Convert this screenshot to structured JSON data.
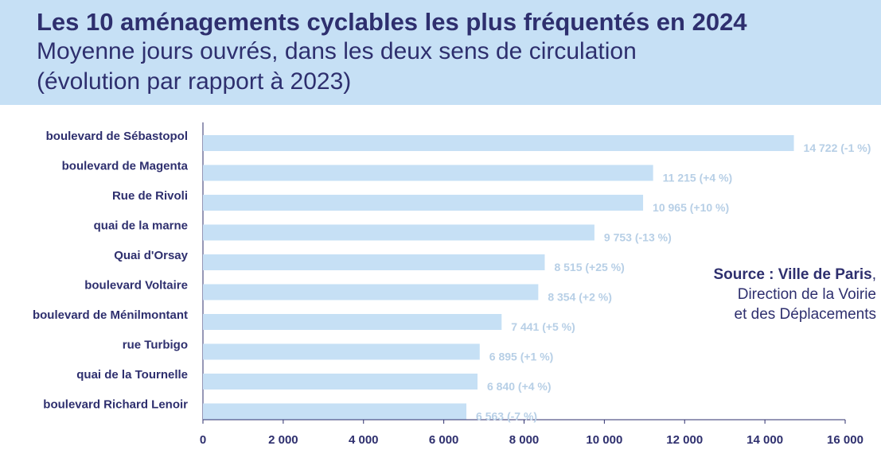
{
  "header": {
    "title": "Les 10 aménagements cyclables les plus fréquentés en 2024",
    "subtitle_line1": "Moyenne jours ouvrés, dans les deux sens de circulation",
    "subtitle_line2": "(évolution par rapport à 2023)"
  },
  "source": {
    "bold": "Source : Ville de Paris",
    "comma": ",",
    "line2": "Direction de la Voirie",
    "line3": "et des Déplacements"
  },
  "colors": {
    "bar": "#c6e0f5",
    "text": "#2e2f6e",
    "value_label": "#b7cfe6",
    "axis": "#2e2f6e"
  },
  "chart_data": {
    "type": "bar",
    "orientation": "horizontal",
    "categories": [
      "boulevard de Sébastopol",
      "boulevard de Magenta",
      "Rue de Rivoli",
      "quai de la marne",
      "Quai d'Orsay",
      "boulevard Voltaire",
      "boulevard de Ménilmontant",
      "rue Turbigo",
      "quai de la Tournelle",
      "boulevard Richard Lenoir"
    ],
    "values": [
      14722,
      11215,
      10965,
      9753,
      8515,
      8354,
      7441,
      6895,
      6840,
      6563
    ],
    "data_labels": [
      "14 722 (-1 %)",
      "11 215 (+4 %)",
      "10 965 (+10 %)",
      "9 753 (-13 %)",
      "8 515 (+25 %)",
      "8 354 (+2 %)",
      "7 441 (+5 %)",
      "6 895 (+1 %)",
      "6 840 (+4 %)",
      "6 563 (-7 %)"
    ],
    "xlim": [
      0,
      16000
    ],
    "xticks": [
      0,
      2000,
      4000,
      6000,
      8000,
      10000,
      12000,
      14000,
      16000
    ],
    "xtick_labels": [
      "0",
      "2 000",
      "4 000",
      "6 000",
      "8 000",
      "10 000",
      "12 000",
      "14 000",
      "16 000"
    ],
    "grid": false,
    "legend": "none"
  }
}
